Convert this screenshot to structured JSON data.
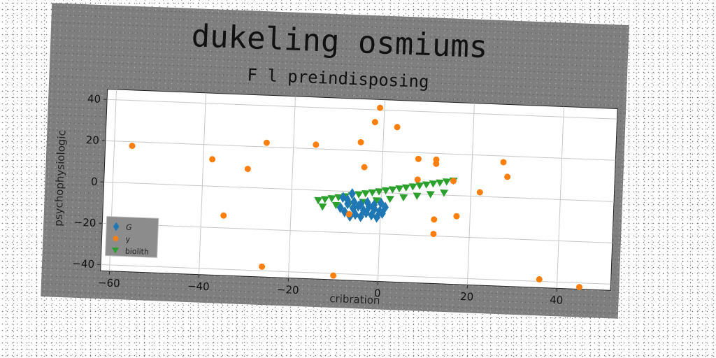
{
  "chart_data": {
    "type": "scatter",
    "title": "dukeling osmiums",
    "subtitle": "F l preindisposing",
    "xlabel": "cribration",
    "ylabel": "psychophysiologic",
    "xlim": [
      -62,
      52
    ],
    "ylim": [
      -43,
      45
    ],
    "xticks": [
      -60,
      -40,
      -20,
      0,
      20,
      40
    ],
    "yticks": [
      -40,
      -20,
      0,
      20,
      40
    ],
    "grid": true,
    "legend_position": "lower-left",
    "series": [
      {
        "name": "G",
        "marker": "diamond",
        "color": "#1f77b4",
        "x": [
          -8,
          -7.4,
          -6.8,
          -6.2,
          -5.6,
          -5,
          -4.4,
          -3.8,
          -3.2,
          -2.6,
          -2,
          -1.4,
          -0.8,
          -0.2,
          0.4,
          1,
          -7.5,
          -6,
          -4.5,
          -3,
          -1.5,
          0,
          -9,
          -8.5,
          -6.5
        ],
        "y": [
          -10,
          -6,
          -12,
          -8,
          -11,
          -7,
          -12,
          -9,
          -10,
          -7,
          -11,
          -8,
          -12,
          -9,
          -10,
          -7,
          -4,
          -5,
          -6,
          -5,
          -6,
          -5,
          -8,
          -3,
          -1
        ]
      },
      {
        "name": "y",
        "marker": "circle",
        "color": "#ff7f0e",
        "x": [
          -56,
          -38,
          -35,
          -30,
          -26,
          -26,
          -15,
          -10,
          -7,
          -5,
          -4,
          -2,
          -1,
          3,
          8,
          8,
          12,
          12,
          12,
          12,
          16,
          17,
          22,
          27,
          28,
          36,
          45
        ],
        "y": [
          18,
          13,
          -14,
          9,
          22,
          -38,
          22,
          -41,
          -11,
          24,
          12,
          34,
          41,
          32,
          17,
          7,
          17,
          15,
          -19,
          -12,
          7,
          -10,
          2,
          17,
          10,
          -39,
          -42
        ]
      },
      {
        "name": "biolith",
        "marker": "triangle-down",
        "color": "#2ca02c",
        "x": [
          -14,
          -12.5,
          -11,
          -9.5,
          -8,
          -6.5,
          -5,
          -3.5,
          -2,
          -0.5,
          1,
          2.5,
          4,
          5.5,
          7,
          8.5,
          10,
          11.5,
          13,
          14.5,
          16,
          -13,
          -10,
          -7,
          -4,
          -1,
          2,
          5,
          8,
          11,
          14
        ],
        "y": [
          -5,
          -4.4,
          -3.8,
          -3.2,
          -2.6,
          -2,
          -1.4,
          -0.8,
          -0.2,
          0.4,
          1,
          1.6,
          2.2,
          2.8,
          3.4,
          4,
          4.6,
          5.2,
          5.8,
          6.4,
          7,
          -8,
          -7,
          -6,
          -5,
          -4,
          -3,
          -2,
          -1,
          0,
          1
        ]
      }
    ]
  }
}
